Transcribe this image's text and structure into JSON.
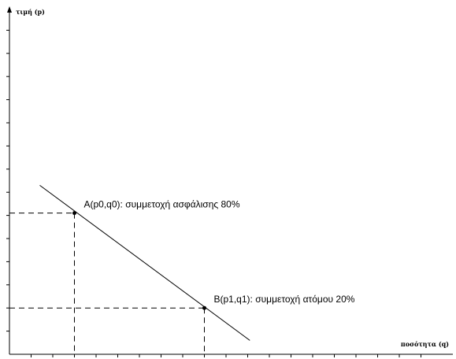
{
  "chart_data": {
    "type": "line",
    "ylabel": "τιμή (p)",
    "xlabel": "ποσότητα (q)",
    "xlim": [
      0,
      19
    ],
    "ylim": [
      0,
      14
    ],
    "x_ticks": [
      1,
      2,
      3,
      4,
      5,
      6,
      7,
      8,
      9,
      10,
      11,
      12,
      13,
      14,
      15,
      16,
      17,
      18,
      19
    ],
    "y_ticks": [
      1,
      2,
      3,
      4,
      5,
      6,
      7,
      8,
      9,
      10,
      11,
      12,
      13,
      14
    ],
    "series": [
      {
        "x": [
          1.4,
          11.1
        ],
        "y": [
          7.3,
          0.6
        ]
      }
    ],
    "points": [
      {
        "label": "A(p0,q0): συμμετοχή ασφάλισης 80%",
        "x": 3.0,
        "y": 6.1
      },
      {
        "label": "B(p1,q1): συμμετοχή ατόμου 20%",
        "x": 9.0,
        "y": 2.0
      }
    ],
    "grid": false
  }
}
